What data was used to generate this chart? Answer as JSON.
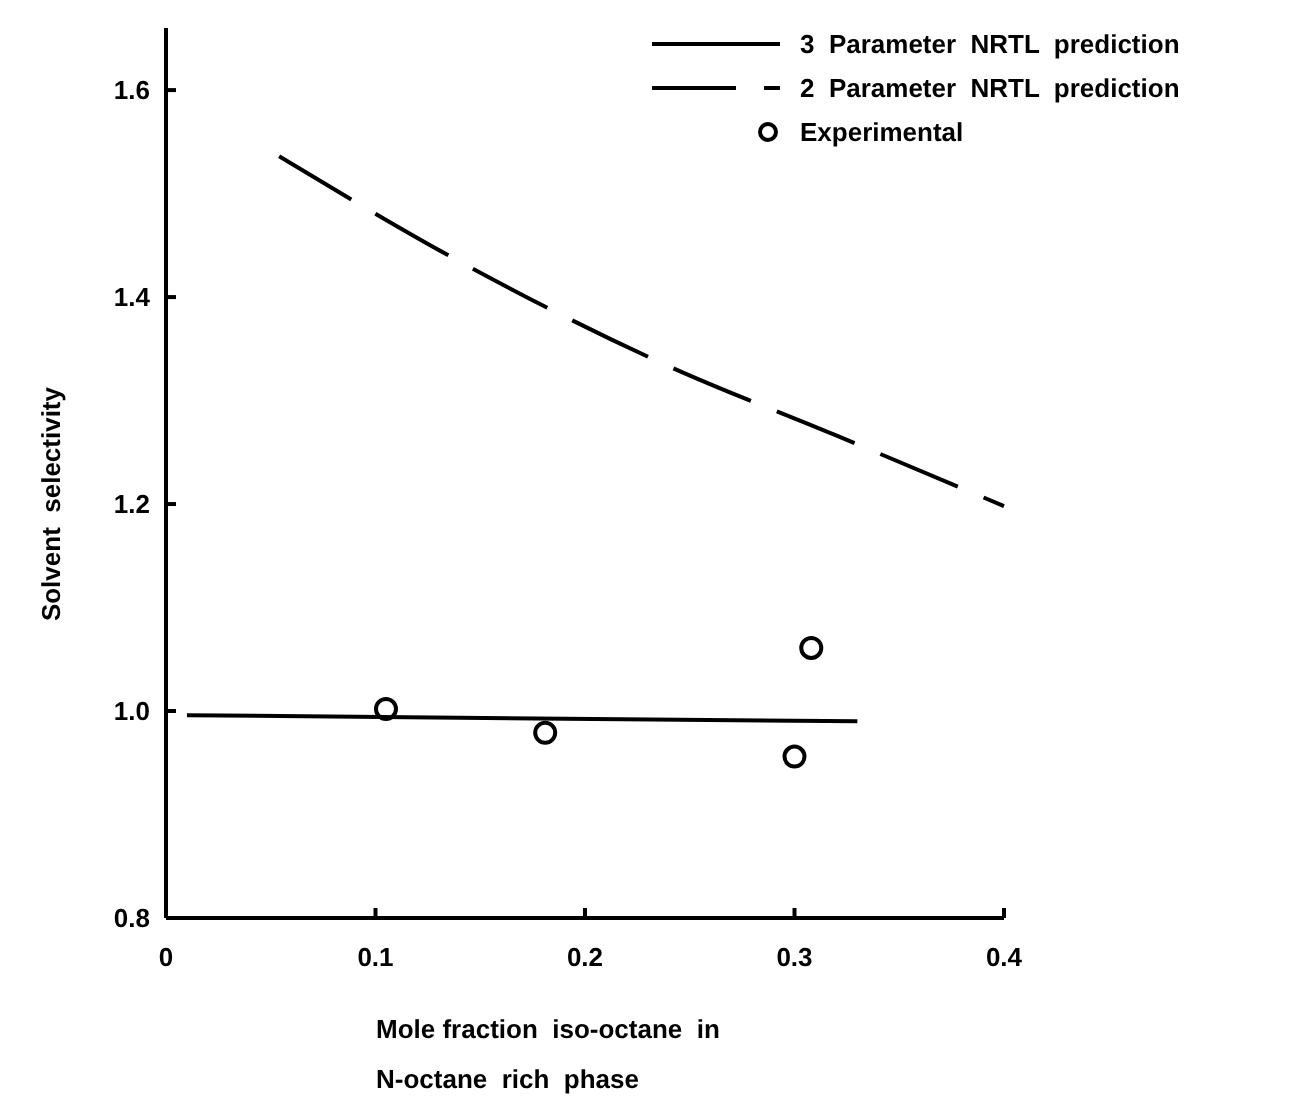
{
  "chart_data": {
    "type": "line",
    "xlabel": "Mole fraction  iso-octane  in\nN-octane  rich  phase",
    "ylabel": "Solvent  selectivity",
    "xlim": [
      0,
      0.4
    ],
    "ylim": [
      0.8,
      1.66
    ],
    "xticks": [
      {
        "value": 0,
        "label": "0"
      },
      0.1,
      0.2,
      0.3,
      0.4
    ],
    "yticks": [
      0.8,
      {
        "value": 1,
        "label": "1.0"
      },
      1.2,
      1.4,
      1.6
    ],
    "grid": false,
    "legend": "top right",
    "series": [
      {
        "name": "3  Parameter  NRTL  prediction",
        "color": "#000000",
        "line_style": "solid",
        "marker": "none",
        "x": [
          0.01,
          0.33
        ],
        "values": [
          0.996,
          0.99
        ]
      },
      {
        "name": "2  Parameter  NRTL  prediction",
        "color": "#000000",
        "line_style": "dashed",
        "marker": "none",
        "x": [
          0.054,
          0.145,
          0.239,
          0.319,
          0.4
        ],
        "values": [
          1.536,
          1.429,
          1.334,
          1.267,
          1.198
        ]
      },
      {
        "name": "Experimental",
        "type": "scatter",
        "color": "#000000",
        "marker": "circle",
        "x": [
          0.105,
          0.181,
          0.3,
          0.308
        ],
        "values": [
          1.002,
          0.979,
          0.956,
          1.061
        ]
      }
    ]
  }
}
